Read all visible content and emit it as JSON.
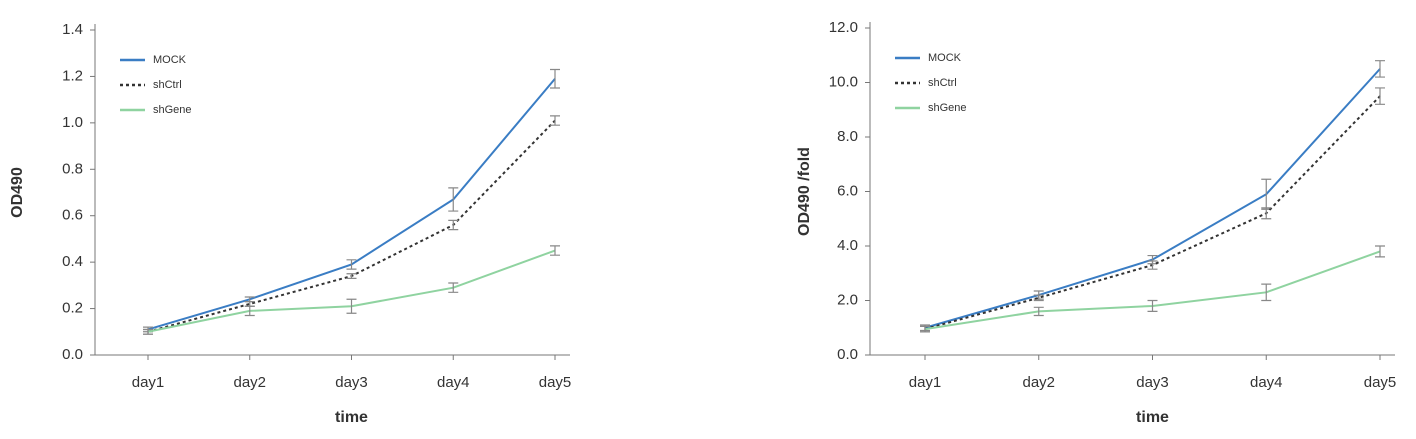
{
  "chart_data": [
    {
      "type": "line",
      "xlabel": "time",
      "ylabel": "OD490",
      "categories": [
        "day1",
        "day2",
        "day3",
        "day4",
        "day5"
      ],
      "ylim": [
        0,
        1.4
      ],
      "yticks": [
        {
          "value": 0,
          "label": "0.0"
        },
        0.2,
        0.4,
        0.6,
        0.8,
        {
          "value": 1,
          "label": "1.0"
        },
        1.2,
        1.4
      ],
      "grid": false,
      "legend": "upper left",
      "series": [
        {
          "name": "MOCK",
          "color": "#3a7dc4",
          "linestyle": "solid",
          "values": [
            0.11,
            0.24,
            0.39,
            0.67,
            1.19
          ],
          "errors": [
            0.01,
            0.01,
            0.02,
            0.05,
            0.04
          ]
        },
        {
          "name": "shCtrl",
          "color": "#333333",
          "linestyle": "dotted",
          "values": [
            0.1,
            0.22,
            0.34,
            0.56,
            1.01
          ],
          "errors": [
            0.01,
            0.01,
            0.01,
            0.02,
            0.02
          ]
        },
        {
          "name": "shGene",
          "color": "#8fd3a0",
          "linestyle": "solid",
          "values": [
            0.1,
            0.19,
            0.21,
            0.29,
            0.45
          ],
          "errors": [
            0.01,
            0.02,
            0.03,
            0.02,
            0.02
          ]
        }
      ]
    },
    {
      "type": "line",
      "xlabel": "time",
      "ylabel": "OD490 /fold",
      "categories": [
        "day1",
        "day2",
        "day3",
        "day4",
        "day5"
      ],
      "ylim": [
        0,
        12
      ],
      "yticks": [
        {
          "value": 0,
          "label": "0.0"
        },
        {
          "value": 2,
          "label": "2.0"
        },
        {
          "value": 4,
          "label": "4.0"
        },
        {
          "value": 6,
          "label": "6.0"
        },
        {
          "value": 8,
          "label": "8.0"
        },
        {
          "value": 10,
          "label": "10.0"
        },
        {
          "value": 12,
          "label": "12.0"
        }
      ],
      "grid": false,
      "legend": "upper left",
      "series": [
        {
          "name": "MOCK",
          "color": "#3a7dc4",
          "linestyle": "solid",
          "values": [
            1.0,
            2.2,
            3.5,
            5.9,
            10.5
          ],
          "errors": [
            0.1,
            0.15,
            0.15,
            0.55,
            0.3
          ]
        },
        {
          "name": "shCtrl",
          "color": "#333333",
          "linestyle": "dotted",
          "values": [
            0.95,
            2.1,
            3.3,
            5.2,
            9.5
          ],
          "errors": [
            0.1,
            0.1,
            0.15,
            0.2,
            0.3
          ]
        },
        {
          "name": "shGene",
          "color": "#8fd3a0",
          "linestyle": "solid",
          "values": [
            0.95,
            1.6,
            1.8,
            2.3,
            3.8
          ],
          "errors": [
            0.1,
            0.15,
            0.2,
            0.3,
            0.2
          ]
        }
      ]
    }
  ]
}
